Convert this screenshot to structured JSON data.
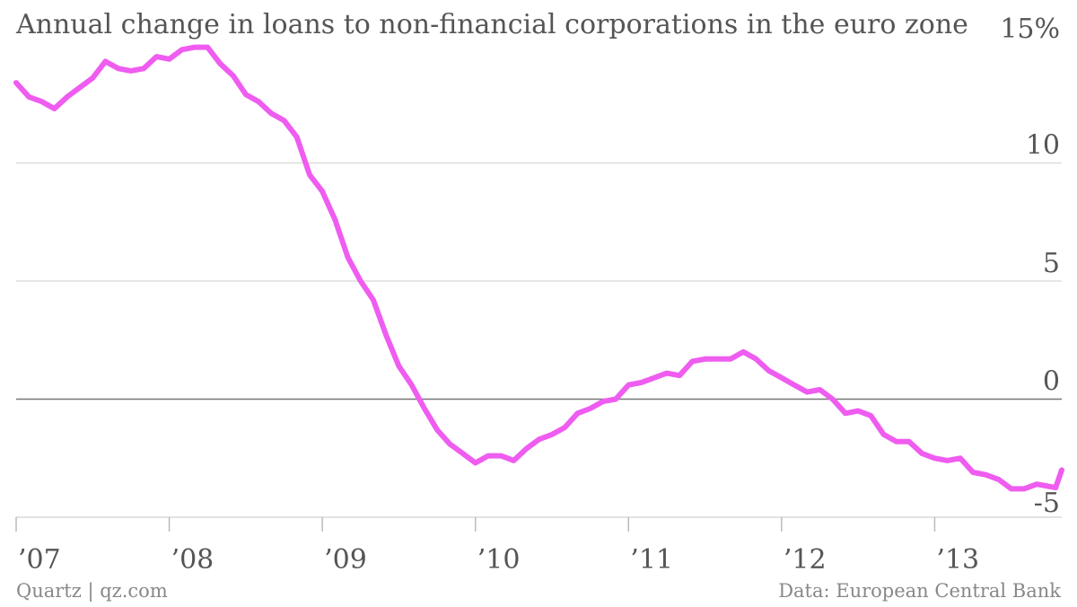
{
  "title": "Annual change in loans to non-financial corporations in the euro zone",
  "source_left": "Quartz | qz.com",
  "source_right": "Data: European Central Bank",
  "colors": {
    "line": "#ef5cf0",
    "grid": "#dddddd",
    "zero": "#777777",
    "text": "#555555"
  },
  "chart_data": {
    "type": "line",
    "title": "Annual change in loans to non-financial corporations in the euro zone",
    "xlabel": "",
    "ylabel": "",
    "xlim": [
      2007.0,
      2013.83
    ],
    "ylim": [
      -5,
      15
    ],
    "y_ticks": [
      15,
      10,
      5,
      0,
      -5
    ],
    "y_tick_labels": [
      "15%",
      "10",
      "5",
      "0",
      "-5"
    ],
    "x_ticks": [
      2007,
      2008,
      2009,
      2010,
      2011,
      2012,
      2013
    ],
    "x_tick_labels": [
      "’07",
      "’08",
      "’09",
      "’10",
      "’11",
      "’12",
      "’13"
    ],
    "grid": true,
    "series": [
      {
        "name": "",
        "points": [
          [
            2007.0,
            13.4
          ],
          [
            2007.083,
            12.8
          ],
          [
            2007.167,
            12.6
          ],
          [
            2007.25,
            12.3
          ],
          [
            2007.333,
            12.8
          ],
          [
            2007.417,
            13.2
          ],
          [
            2007.5,
            13.6
          ],
          [
            2007.583,
            14.3
          ],
          [
            2007.667,
            14.0
          ],
          [
            2007.75,
            13.9
          ],
          [
            2007.833,
            14.0
          ],
          [
            2007.917,
            14.5
          ],
          [
            2008.0,
            14.4
          ],
          [
            2008.083,
            14.8
          ],
          [
            2008.167,
            14.9
          ],
          [
            2008.25,
            14.9
          ],
          [
            2008.333,
            14.2
          ],
          [
            2008.417,
            13.7
          ],
          [
            2008.5,
            12.9
          ],
          [
            2008.583,
            12.6
          ],
          [
            2008.667,
            12.1
          ],
          [
            2008.75,
            11.8
          ],
          [
            2008.833,
            11.1
          ],
          [
            2008.917,
            9.5
          ],
          [
            2009.0,
            8.8
          ],
          [
            2009.083,
            7.6
          ],
          [
            2009.167,
            6.0
          ],
          [
            2009.25,
            5.0
          ],
          [
            2009.333,
            4.2
          ],
          [
            2009.417,
            2.7
          ],
          [
            2009.5,
            1.4
          ],
          [
            2009.583,
            0.6
          ],
          [
            2009.667,
            -0.4
          ],
          [
            2009.75,
            -1.3
          ],
          [
            2009.833,
            -1.9
          ],
          [
            2009.917,
            -2.3
          ],
          [
            2010.0,
            -2.7
          ],
          [
            2010.083,
            -2.4
          ],
          [
            2010.167,
            -2.4
          ],
          [
            2010.25,
            -2.6
          ],
          [
            2010.333,
            -2.1
          ],
          [
            2010.417,
            -1.7
          ],
          [
            2010.5,
            -1.5
          ],
          [
            2010.583,
            -1.2
          ],
          [
            2010.667,
            -0.6
          ],
          [
            2010.75,
            -0.4
          ],
          [
            2010.833,
            -0.1
          ],
          [
            2010.917,
            0.0
          ],
          [
            2011.0,
            0.6
          ],
          [
            2011.083,
            0.7
          ],
          [
            2011.167,
            0.9
          ],
          [
            2011.25,
            1.1
          ],
          [
            2011.333,
            1.0
          ],
          [
            2011.417,
            1.6
          ],
          [
            2011.5,
            1.7
          ],
          [
            2011.583,
            1.7
          ],
          [
            2011.667,
            1.7
          ],
          [
            2011.75,
            2.0
          ],
          [
            2011.833,
            1.7
          ],
          [
            2011.917,
            1.2
          ],
          [
            2012.0,
            0.9
          ],
          [
            2012.083,
            0.6
          ],
          [
            2012.167,
            0.3
          ],
          [
            2012.25,
            0.4
          ],
          [
            2012.333,
            0.0
          ],
          [
            2012.417,
            -0.6
          ],
          [
            2012.5,
            -0.5
          ],
          [
            2012.583,
            -0.7
          ],
          [
            2012.667,
            -1.5
          ],
          [
            2012.75,
            -1.8
          ],
          [
            2012.833,
            -1.8
          ],
          [
            2012.917,
            -2.3
          ],
          [
            2013.0,
            -2.5
          ],
          [
            2013.083,
            -2.6
          ],
          [
            2013.167,
            -2.5
          ],
          [
            2013.25,
            -3.1
          ],
          [
            2013.333,
            -3.2
          ],
          [
            2013.417,
            -3.4
          ],
          [
            2013.5,
            -3.8
          ],
          [
            2013.583,
            -3.8
          ],
          [
            2013.667,
            -3.6
          ],
          [
            2013.75,
            -3.7
          ],
          [
            2013.79,
            -3.75
          ],
          [
            2013.83,
            -3.0
          ]
        ]
      }
    ]
  }
}
